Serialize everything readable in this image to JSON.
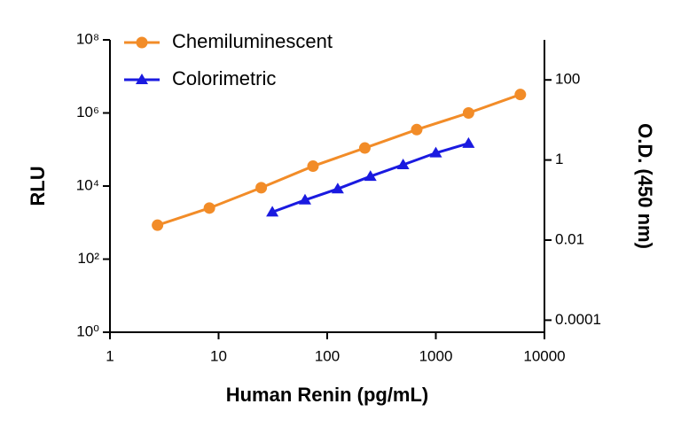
{
  "chart_data": {
    "type": "line",
    "xlabel": "Human Renin (pg/mL)",
    "ylabel": "RLU",
    "y2label": "O.D. (450 nm)",
    "xscale": "log",
    "yscale": "log",
    "y2scale": "log",
    "xlim": [
      1,
      10000
    ],
    "xticks": [
      1,
      10,
      100,
      1000,
      10000
    ],
    "ylim": [
      1,
      100000000
    ],
    "yticks": [
      {
        "value": 1,
        "label": "10⁰"
      },
      {
        "value": 100,
        "label": "10²"
      },
      {
        "value": 10000,
        "label": "10⁴"
      },
      {
        "value": 1000000,
        "label": "10⁶"
      },
      {
        "value": 100000000,
        "label": "10⁸"
      }
    ],
    "y2lim": [
      5e-05,
      1000
    ],
    "y2ticks": [
      100,
      1,
      0.01,
      0.0001
    ],
    "legend": "upper left",
    "series": [
      {
        "name": "Chemiluminescent",
        "color": "#f28c28",
        "marker": "circle",
        "x": [
          2.74,
          8.23,
          24.7,
          74,
          222,
          667,
          2000,
          6000
        ],
        "values": [
          850,
          2500,
          9000,
          35000,
          110000,
          350000,
          1000000,
          3200000
        ]
      },
      {
        "name": "Colorimetric",
        "color": "#1a1ae0",
        "marker": "triangle",
        "axis": "y2",
        "x": [
          31.25,
          62.5,
          125,
          250,
          500,
          1000,
          2000
        ],
        "values": [
          0.05,
          0.1,
          0.19,
          0.39,
          0.76,
          1.5,
          2.6
        ]
      }
    ]
  }
}
